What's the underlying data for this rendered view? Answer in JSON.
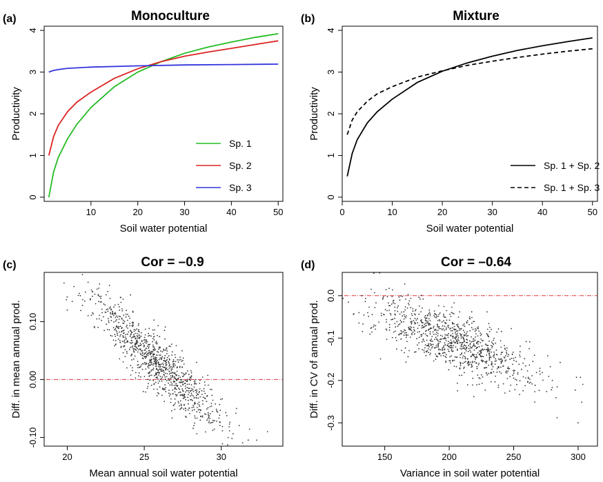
{
  "chart_data": [
    {
      "panel": "(a)",
      "type": "line",
      "title": "Monoculture",
      "xlabel": "Soil water potential",
      "ylabel": "Productivity",
      "xlim": [
        0,
        51
      ],
      "ylim": [
        -0.1,
        4.1
      ],
      "xticks": [
        "10",
        "20",
        "30",
        "40",
        "50"
      ],
      "xtick_values": [
        10,
        20,
        30,
        40,
        50
      ],
      "yticks": [
        "0",
        "1",
        "2",
        "3",
        "4"
      ],
      "ytick_values": [
        0,
        1,
        2,
        3,
        4
      ],
      "legend_position": "bottom-right",
      "series": [
        {
          "name": "Sp. 1",
          "color": "#22bb22",
          "dash": "solid",
          "x": [
            1,
            2,
            3,
            5,
            7,
            10,
            15,
            20,
            25,
            30,
            35,
            40,
            45,
            50
          ],
          "y": [
            0.0,
            0.6,
            0.95,
            1.4,
            1.75,
            2.15,
            2.65,
            3.0,
            3.25,
            3.45,
            3.6,
            3.72,
            3.83,
            3.92
          ]
        },
        {
          "name": "Sp. 2",
          "color": "#dd2222",
          "dash": "solid",
          "x": [
            1,
            2,
            3,
            5,
            7,
            10,
            15,
            20,
            25,
            30,
            35,
            40,
            45,
            50
          ],
          "y": [
            1.0,
            1.45,
            1.72,
            2.05,
            2.28,
            2.52,
            2.85,
            3.08,
            3.25,
            3.38,
            3.48,
            3.57,
            3.66,
            3.75
          ]
        },
        {
          "name": "Sp. 3",
          "color": "#3333dd",
          "dash": "solid",
          "x": [
            1,
            2,
            3,
            5,
            10,
            20,
            30,
            40,
            50
          ],
          "y": [
            3.0,
            3.04,
            3.06,
            3.09,
            3.12,
            3.15,
            3.17,
            3.18,
            3.19
          ]
        }
      ]
    },
    {
      "panel": "(b)",
      "type": "line",
      "title": "Mixture",
      "xlabel": "Soil water potential",
      "ylabel": "Productivity",
      "xlim": [
        0,
        51
      ],
      "ylim": [
        -0.1,
        4.1
      ],
      "xticks": [
        "0",
        "10",
        "20",
        "30",
        "40",
        "50"
      ],
      "xtick_values": [
        0,
        10,
        20,
        30,
        40,
        50
      ],
      "yticks": [
        "0",
        "1",
        "2",
        "3",
        "4"
      ],
      "ytick_values": [
        0,
        1,
        2,
        3,
        4
      ],
      "legend_position": "bottom-right",
      "series": [
        {
          "name": "Sp. 1 + Sp. 2",
          "color": "#000000",
          "dash": "solid",
          "x": [
            1,
            2,
            3,
            5,
            7,
            10,
            15,
            20,
            25,
            30,
            35,
            40,
            45,
            50
          ],
          "y": [
            0.5,
            1.05,
            1.38,
            1.78,
            2.05,
            2.35,
            2.75,
            3.02,
            3.22,
            3.38,
            3.52,
            3.63,
            3.73,
            3.82
          ]
        },
        {
          "name": "Sp. 1 + Sp. 3",
          "color": "#000000",
          "dash": "dashed",
          "x": [
            1,
            2,
            3,
            5,
            7,
            10,
            15,
            20,
            25,
            30,
            35,
            40,
            45,
            50
          ],
          "y": [
            1.5,
            1.85,
            2.05,
            2.3,
            2.48,
            2.65,
            2.88,
            3.03,
            3.16,
            3.26,
            3.35,
            3.43,
            3.5,
            3.56
          ]
        }
      ]
    },
    {
      "panel": "(c)",
      "type": "scatter",
      "title": "Cor = –0.9",
      "xlabel": "Mean annual soil water potential",
      "ylabel": "Diff. in mean annual prod.",
      "xlim": [
        18.5,
        34
      ],
      "ylim": [
        -0.115,
        0.185
      ],
      "xticks": [
        "20",
        "25",
        "30"
      ],
      "xtick_values": [
        20,
        25,
        30
      ],
      "yticks": [
        "-0.10",
        "0.00",
        "0.10"
      ],
      "ytick_values": [
        -0.1,
        0.0,
        0.1
      ],
      "reference_line": {
        "y": 0.0,
        "color": "#dd3333",
        "dash": "dotdash"
      },
      "trend": {
        "x_center": 25.8,
        "x_sd": 2.3,
        "slope": -0.0253,
        "intercept_at_center": 0.03,
        "residual_sd": 0.025,
        "n": 1000
      },
      "key_points": [
        [
          20,
          0.12
        ],
        [
          22,
          0.09
        ],
        [
          25,
          0.04
        ],
        [
          28,
          -0.02
        ],
        [
          31,
          -0.05
        ],
        [
          33,
          -0.09
        ]
      ]
    },
    {
      "panel": "(d)",
      "type": "scatter",
      "title": "Cor = –0.64",
      "xlabel": "Variance in soil water potential",
      "ylabel": "Diff. in CV of annual prod.",
      "xlim": [
        117,
        315
      ],
      "ylim": [
        -0.355,
        0.055
      ],
      "xticks": [
        "150",
        "200",
        "250",
        "300"
      ],
      "xtick_values": [
        150,
        200,
        250,
        300
      ],
      "yticks": [
        "-0.3",
        "-0.2",
        "-0.1",
        "0.0"
      ],
      "ytick_values": [
        -0.3,
        -0.2,
        -0.1,
        0.0
      ],
      "reference_line": {
        "y": 0.0,
        "color": "#dd3333",
        "dash": "dotdash"
      },
      "trend": {
        "x_center": 205,
        "x_sd": 32,
        "slope": -0.0012,
        "intercept_at_center": -0.11,
        "residual_sd": 0.035,
        "n": 1000
      },
      "key_points": [
        [
          130,
          -0.04
        ],
        [
          170,
          -0.08
        ],
        [
          205,
          -0.11
        ],
        [
          240,
          -0.15
        ],
        [
          280,
          -0.2
        ],
        [
          300,
          -0.3
        ]
      ]
    }
  ]
}
